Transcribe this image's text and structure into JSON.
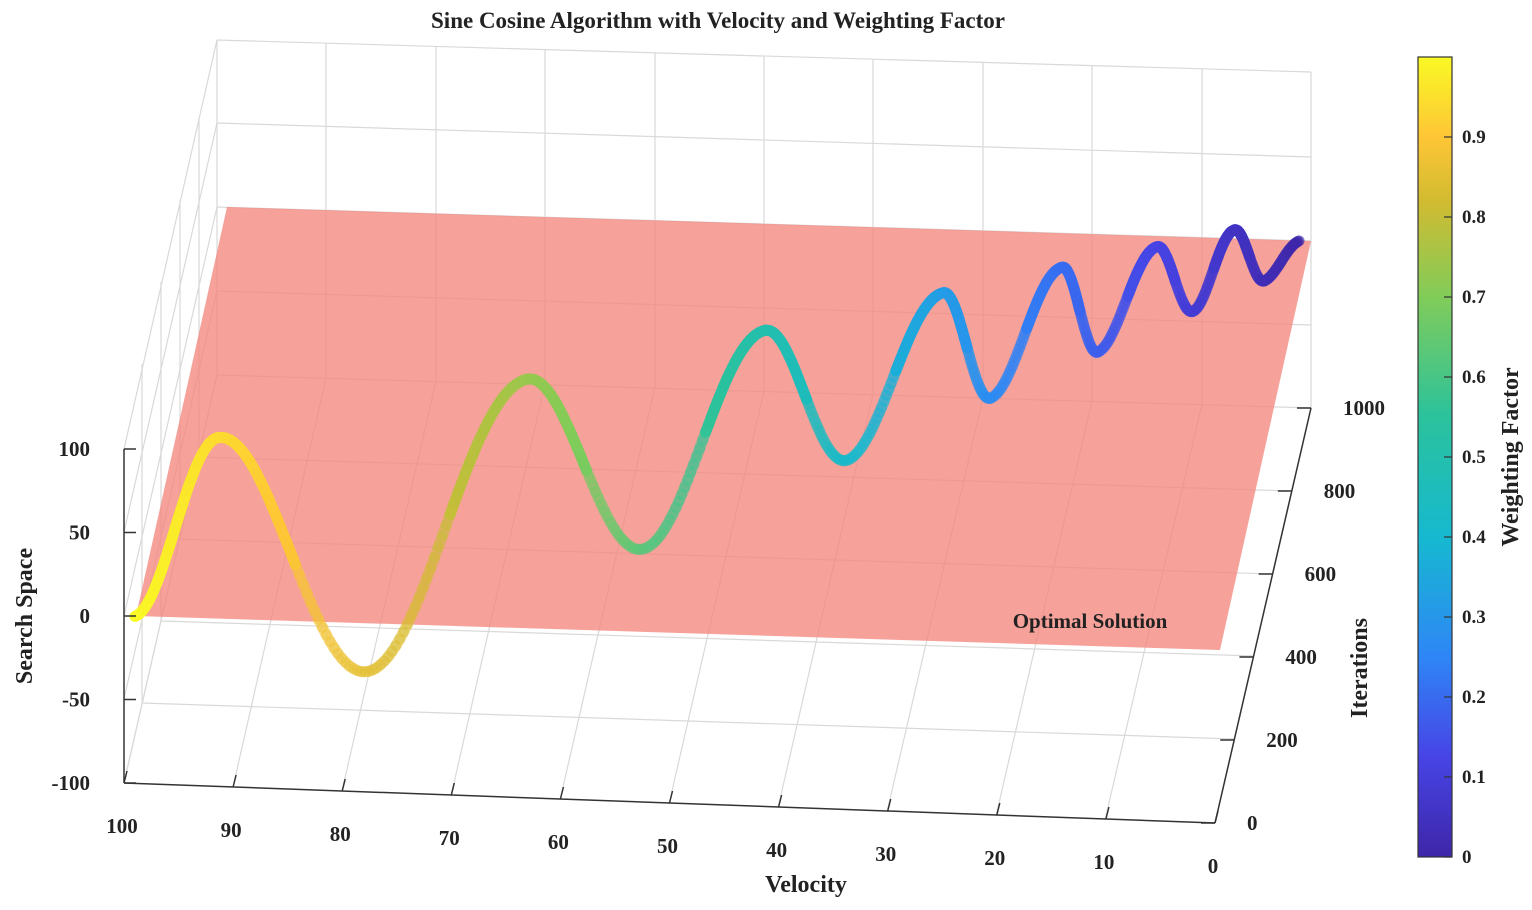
{
  "chart_data": {
    "type": "line",
    "variant": "3d-parametric-curve-with-plane",
    "title": "Sine Cosine Algorithm with Velocity and Weighting Factor",
    "xlabel": "Velocity",
    "ylabel": "Iterations",
    "zlabel": "Search Space",
    "xlim": [
      0,
      100
    ],
    "ylim": [
      0,
      1000
    ],
    "zlim": [
      -100,
      100
    ],
    "xticks": [
      100,
      90,
      80,
      70,
      60,
      50,
      40,
      30,
      20,
      10,
      0
    ],
    "yticks": [
      0,
      200,
      400,
      600,
      800,
      1000
    ],
    "zticks": [
      100,
      50,
      0,
      -50,
      -100
    ],
    "grid": true,
    "series": [
      {
        "name": "search trajectory",
        "x_range": [
          99,
          1
        ],
        "y_range": [
          0,
          1000
        ],
        "peak_velocities": [
          92,
          66,
          46,
          31,
          21,
          13,
          6.5
        ],
        "trough_velocities": [
          79,
          56,
          39,
          27,
          18,
          10,
          4
        ],
        "amplitude_start": 100,
        "amplitude_end": 15,
        "color_by": "weighting_factor"
      }
    ],
    "optimal_plane": {
      "label": "Optimal Solution",
      "z": 0,
      "color": "#F4877D"
    },
    "colorbar": {
      "label": "Weighting Factor",
      "range": [
        0,
        1
      ],
      "ticks": [
        "0",
        "0.1",
        "0.2",
        "0.3",
        "0.4",
        "0.5",
        "0.6",
        "0.7",
        "0.8",
        "0.9"
      ],
      "colormap": [
        "#3E26A8",
        "#4744E6",
        "#2E86F6",
        "#16B9D0",
        "#2BC29C",
        "#81CC59",
        "#D2BB31",
        "#FEC636",
        "#F9F924"
      ]
    }
  }
}
